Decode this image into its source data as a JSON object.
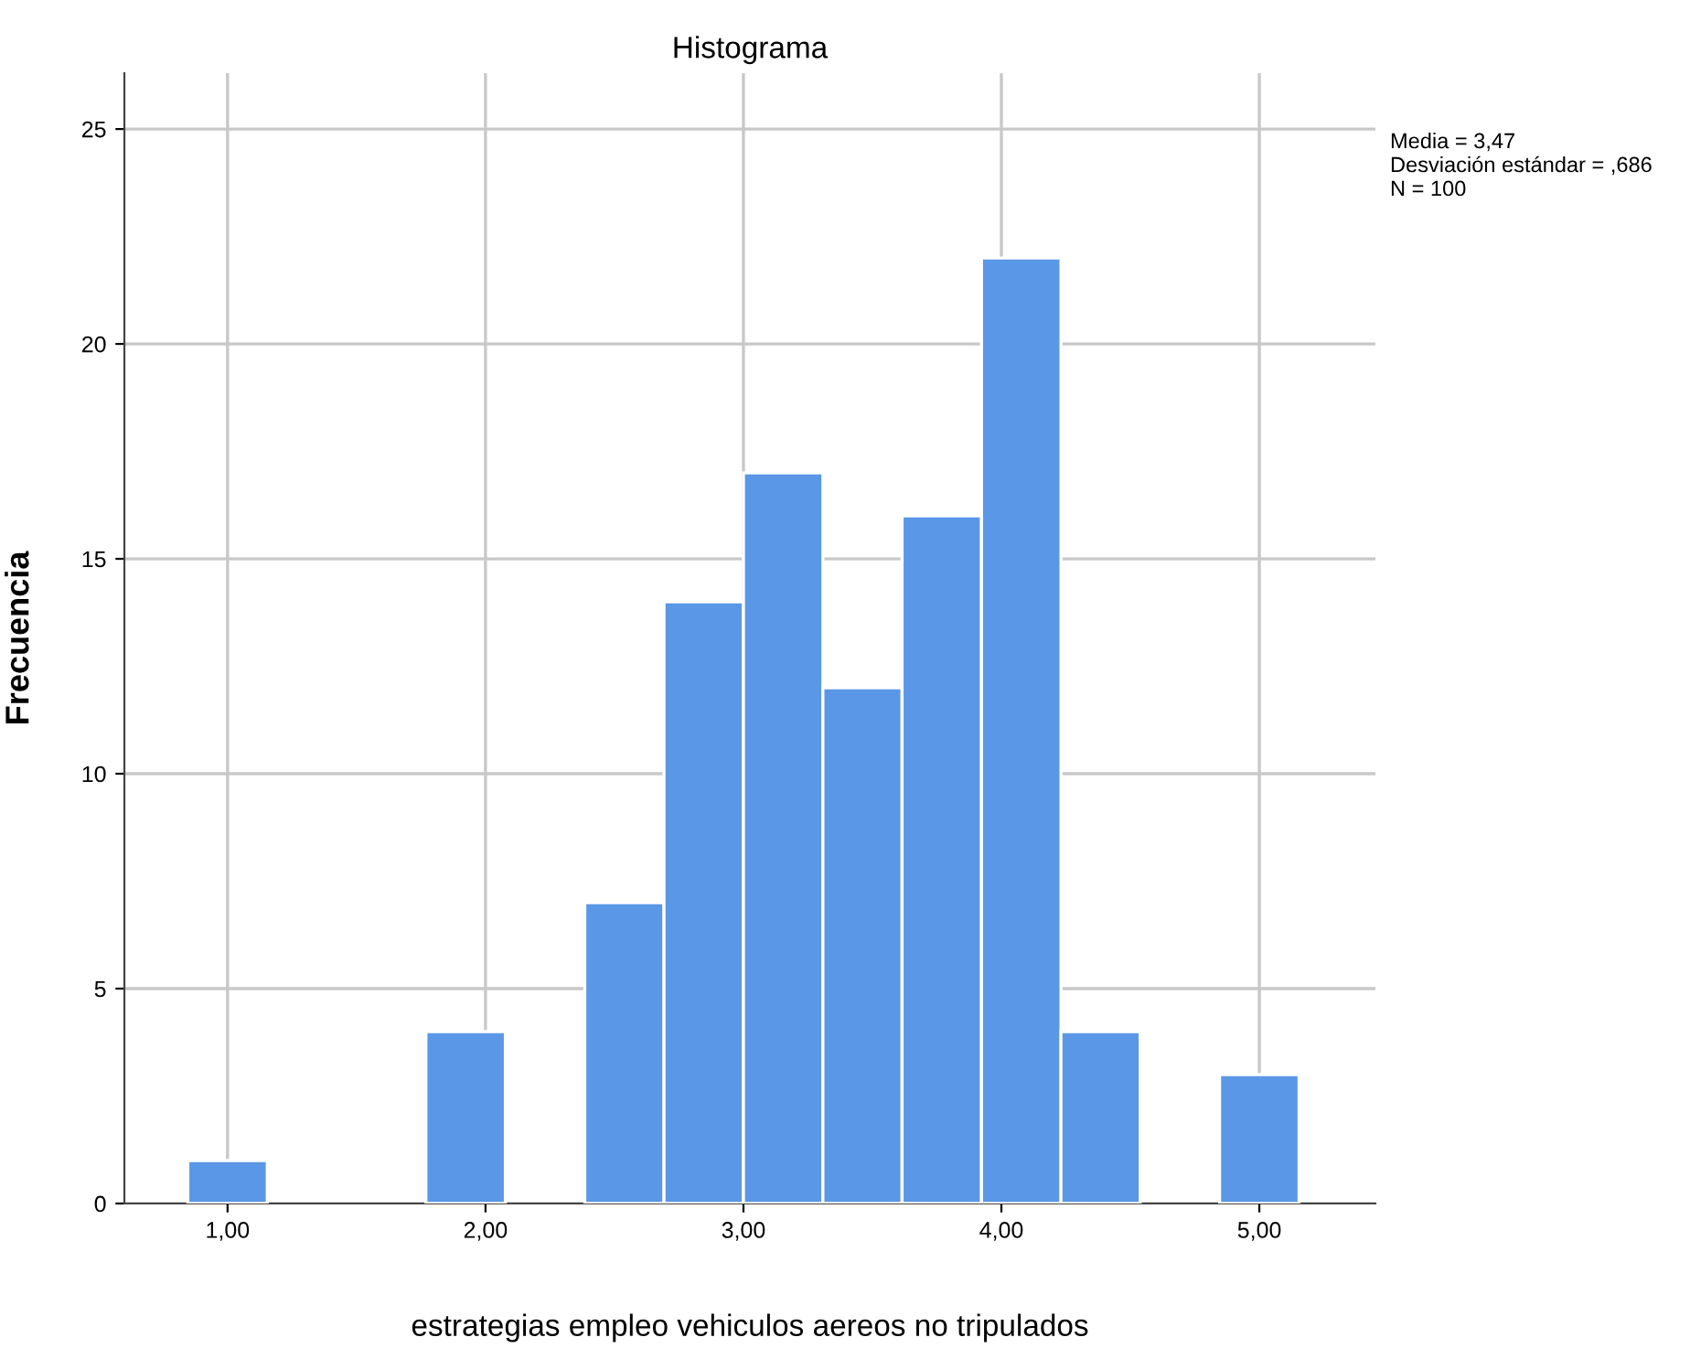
{
  "chart_data": {
    "type": "histogram",
    "title": "Histograma",
    "xlabel": "estrategias empleo vehiculos aereos no tripulados",
    "ylabel": "Frecuencia",
    "bins": [
      0.846,
      1.154,
      1.462,
      1.769,
      2.077,
      2.385,
      2.692,
      3.0,
      3.308,
      3.615,
      3.923,
      4.231,
      4.538,
      4.846,
      5.154
    ],
    "values": [
      1,
      0,
      0,
      4,
      0,
      7,
      14,
      17,
      12,
      16,
      22,
      4,
      0,
      3
    ],
    "color": "#5a97e6",
    "xlim": [
      0.6,
      5.45
    ],
    "ylim": [
      0,
      26.3
    ],
    "xticks": [
      {
        "value": 1,
        "label": "1,00"
      },
      {
        "value": 2,
        "label": "2,00"
      },
      {
        "value": 3,
        "label": "3,00"
      },
      {
        "value": 4,
        "label": "4,00"
      },
      {
        "value": 5,
        "label": "5,00"
      }
    ],
    "yticks": [
      0,
      5,
      10,
      15,
      20,
      25
    ],
    "grid": true,
    "annotations": [
      "Media = 3,47",
      "Desviación estándar = ,686",
      "N = 100"
    ]
  }
}
